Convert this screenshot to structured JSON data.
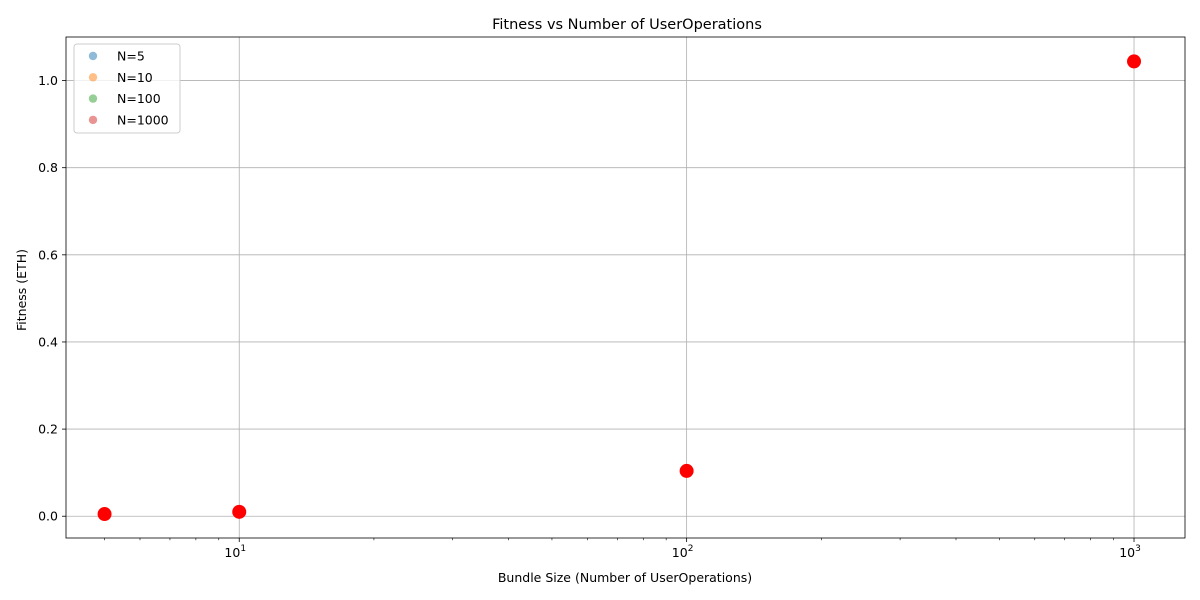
{
  "chart_data": {
    "type": "scatter",
    "title": "Fitness vs Number of UserOperations",
    "xlabel": "Bundle Size (Number of UserOperations)",
    "ylabel": "Fitness (ETH)",
    "xscale": "log",
    "xlim": [
      4.1,
      1300
    ],
    "ylim": [
      -0.05,
      1.1
    ],
    "x_ticks": [
      {
        "value": 10,
        "base": "10",
        "exp": "1"
      },
      {
        "value": 100,
        "base": "10",
        "exp": "2"
      },
      {
        "value": 1000,
        "base": "10",
        "exp": "3"
      }
    ],
    "y_ticks": [
      {
        "value": 0.0,
        "label": "0.0"
      },
      {
        "value": 0.2,
        "label": "0.2"
      },
      {
        "value": 0.4,
        "label": "0.4"
      },
      {
        "value": 0.6,
        "label": "0.6"
      },
      {
        "value": 0.8,
        "label": "0.8"
      },
      {
        "value": 1.0,
        "label": "1.0"
      }
    ],
    "grid": true,
    "legend_position": "top-left",
    "series": [
      {
        "name": "N=5",
        "color": "#1f77b4",
        "points": [
          [
            5,
            0.005
          ]
        ]
      },
      {
        "name": "N=10",
        "color": "#ff7f0e",
        "points": [
          [
            10,
            0.01
          ]
        ]
      },
      {
        "name": "N=100",
        "color": "#2ca02c",
        "points": [
          [
            100,
            0.104
          ]
        ]
      },
      {
        "name": "N=1000",
        "color": "#d62728",
        "points": [
          [
            1000,
            1.044
          ]
        ]
      }
    ],
    "highlight": {
      "color": "#ff0000",
      "points": [
        [
          5,
          0.005
        ],
        [
          10,
          0.01
        ],
        [
          100,
          0.104
        ],
        [
          1000,
          1.044
        ]
      ]
    }
  }
}
